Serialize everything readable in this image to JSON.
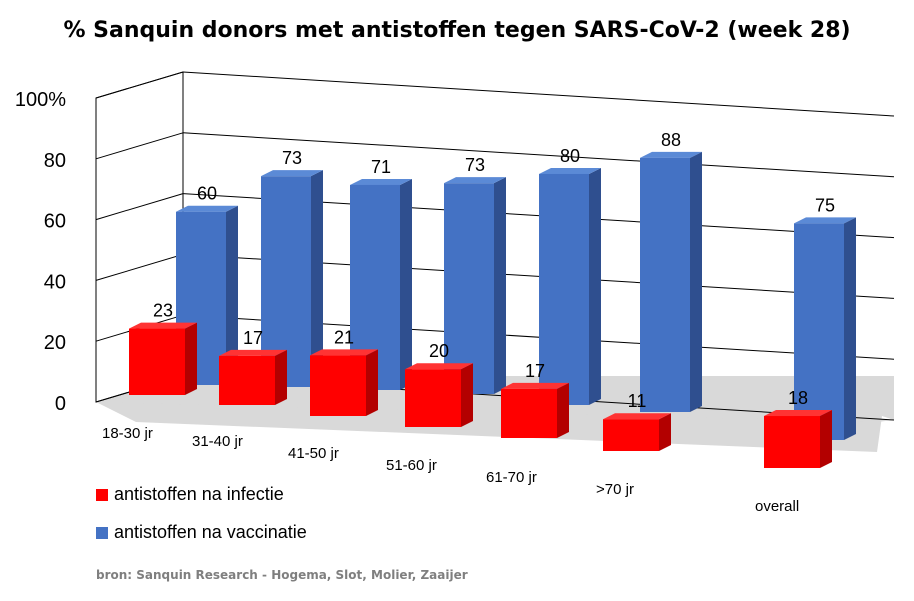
{
  "chart_data": {
    "type": "bar",
    "title": "% Sanquin donors met antistoffen tegen SARS-CoV-2 (week 28)",
    "categories": [
      "18-30 jr",
      "31-40 jr",
      "41-50 jr",
      "51-60 jr",
      "61-70 jr",
      ">70 jr",
      "overall"
    ],
    "series": [
      {
        "name": "antistoffen na infectie",
        "values": [
          23,
          17,
          21,
          20,
          17,
          11,
          18
        ],
        "color": "#ff0000"
      },
      {
        "name": "antistoffen na vaccinatie",
        "values": [
          60,
          73,
          71,
          73,
          80,
          88,
          75
        ],
        "color": "#4472c4"
      }
    ],
    "y_ticks": [
      "0",
      "20",
      "40",
      "60",
      "80",
      "100%"
    ],
    "ylim": [
      0,
      100
    ],
    "grid": true,
    "legend_position": "bottom-left",
    "source": "bron: Sanquin Research - Hogema, Slot, Molier, Zaaijer"
  }
}
